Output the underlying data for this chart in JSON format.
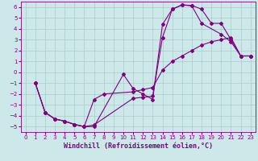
{
  "xlabel": "Windchill (Refroidissement éolien,°C)",
  "xlim": [
    -0.5,
    23.5
  ],
  "ylim": [
    -5.5,
    6.5
  ],
  "xticks": [
    0,
    1,
    2,
    3,
    4,
    5,
    6,
    7,
    8,
    9,
    10,
    11,
    12,
    13,
    14,
    15,
    16,
    17,
    18,
    19,
    20,
    21,
    22,
    23
  ],
  "yticks": [
    -5,
    -4,
    -3,
    -2,
    -1,
    0,
    1,
    2,
    3,
    4,
    5,
    6
  ],
  "bg_color": "#cce8e8",
  "line_color": "#800080",
  "grid_color": "#aacccc",
  "curve1_x": [
    1,
    2,
    3,
    4,
    5,
    6,
    7,
    11,
    12,
    13,
    14,
    15,
    16,
    17,
    18,
    20,
    21,
    22,
    23
  ],
  "curve1_y": [
    -1.0,
    -3.7,
    -4.3,
    -4.5,
    -4.8,
    -5.0,
    -4.85,
    -2.4,
    -2.3,
    -2.2,
    3.2,
    5.8,
    6.2,
    6.1,
    4.5,
    3.5,
    2.8,
    1.5,
    1.5
  ],
  "curve2_x": [
    1,
    2,
    3,
    4,
    5,
    6,
    7,
    8,
    11,
    12,
    13,
    14,
    15,
    16,
    17,
    18,
    19,
    20,
    21,
    22,
    23
  ],
  "curve2_y": [
    -1.0,
    -3.7,
    -4.3,
    -4.5,
    -4.8,
    -5.0,
    -2.5,
    -2.0,
    -1.8,
    -1.6,
    -1.4,
    0.2,
    1.0,
    1.5,
    2.0,
    2.5,
    2.8,
    3.0,
    3.2,
    1.5,
    1.5
  ],
  "curve3_x": [
    1,
    2,
    3,
    4,
    5,
    6,
    7,
    10,
    11,
    12,
    13,
    14,
    15,
    16,
    17,
    18,
    19,
    20,
    21,
    22,
    23
  ],
  "curve3_y": [
    -1.0,
    -3.7,
    -4.3,
    -4.5,
    -4.8,
    -5.0,
    -5.0,
    -0.2,
    -1.5,
    -2.0,
    -2.5,
    4.4,
    5.8,
    6.2,
    6.15,
    5.8,
    4.5,
    4.5,
    3.0,
    1.5,
    1.5
  ],
  "font_color": "#800080",
  "font_size_tick": 5,
  "font_size_label": 6,
  "marker": "D",
  "markersize": 2.0,
  "linewidth": 0.8
}
